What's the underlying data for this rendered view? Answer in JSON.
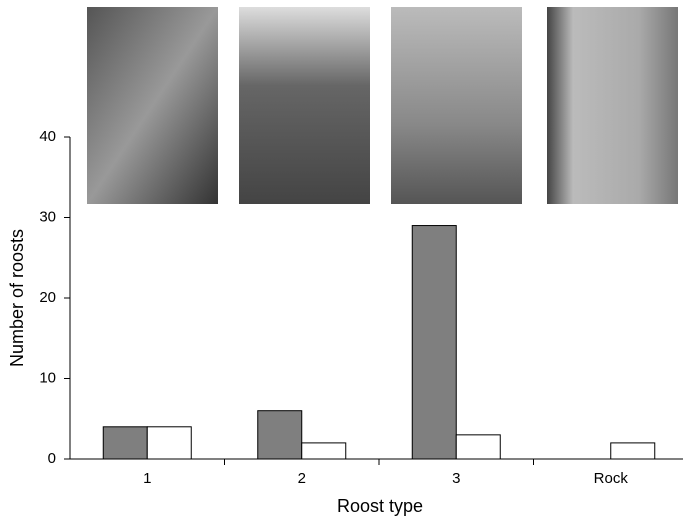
{
  "chart_data": {
    "type": "bar",
    "x_label": "Roost type",
    "y_label": "Number of roosts",
    "categories": [
      "1",
      "2",
      "3",
      "Rock"
    ],
    "series": [
      {
        "color": "#7f7f7f",
        "values": [
          4,
          6,
          29,
          0
        ]
      },
      {
        "color": "#ffffff",
        "values": [
          4,
          2,
          3,
          2
        ]
      }
    ],
    "ylim": [
      0,
      40
    ],
    "yticks": [
      0,
      10,
      20,
      30,
      40
    ]
  }
}
